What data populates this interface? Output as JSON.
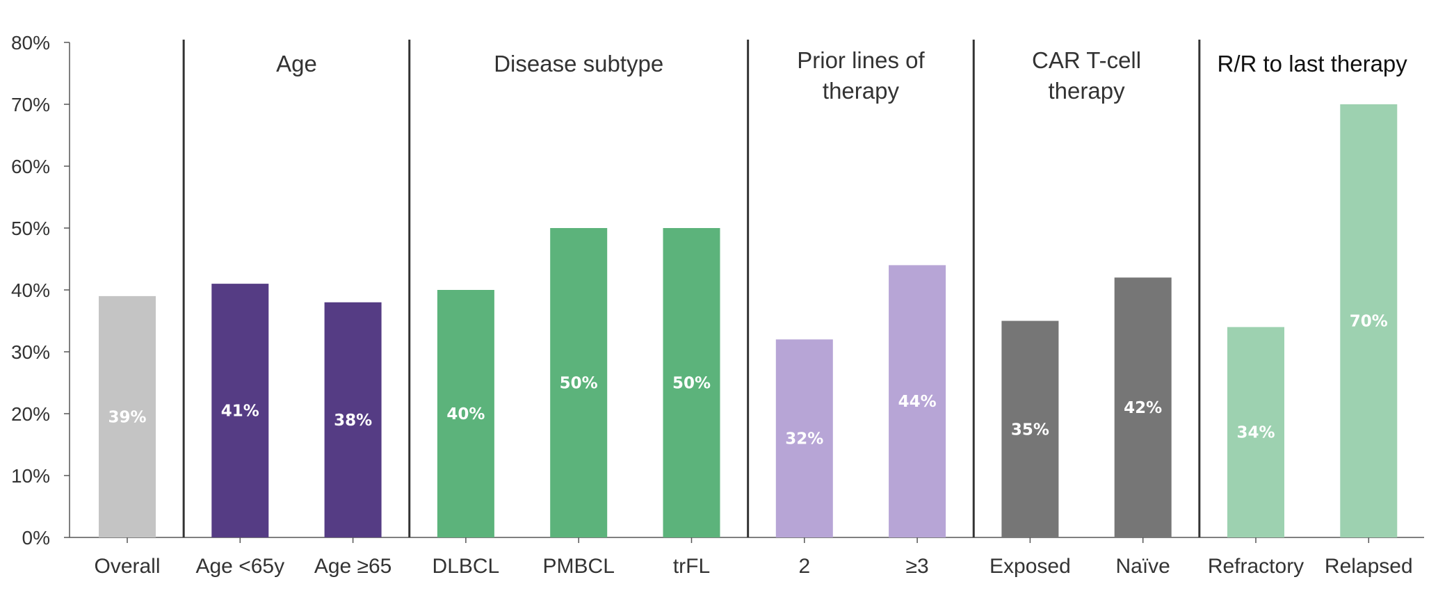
{
  "chart_data": {
    "type": "bar",
    "ylim": [
      0,
      80
    ],
    "yticks": [
      "0%",
      "10%",
      "20%",
      "30%",
      "40%",
      "50%",
      "60%",
      "70%",
      "80%"
    ],
    "grid": false,
    "legend": "none",
    "categories": [
      "Overall",
      "Age <65y",
      "Age ≥65",
      "DLBCL",
      "PMBCL",
      "trFL",
      "2",
      "≥3",
      "Exposed",
      "Naïve",
      "Refractory",
      "Relapsed"
    ],
    "values": [
      39,
      41,
      38,
      40,
      50,
      50,
      32,
      44,
      35,
      42,
      34,
      70
    ],
    "data_labels": [
      "39%",
      "41%",
      "38%",
      "40%",
      "50%",
      "50%",
      "32%",
      "44%",
      "35%",
      "42%",
      "34%",
      "70%"
    ],
    "bar_colors": [
      "#c4c4c4",
      "#553c84",
      "#553c84",
      "#5cb37b",
      "#5cb37b",
      "#5cb37b",
      "#b7a5d6",
      "#b7a5d6",
      "#767676",
      "#767676",
      "#9dd1b0",
      "#9dd1b0"
    ],
    "groups": [
      {
        "lines": [
          "Age"
        ],
        "start": 1,
        "end": 2
      },
      {
        "lines": [
          "Disease subtype"
        ],
        "start": 3,
        "end": 5
      },
      {
        "lines": [
          "Prior lines of",
          "therapy"
        ],
        "start": 6,
        "end": 7
      },
      {
        "lines": [
          "CAR T-cell",
          "therapy"
        ],
        "start": 8,
        "end": 9
      },
      {
        "lines": [
          "R/R to last therapy"
        ],
        "start": 10,
        "end": 11,
        "emphasis": true
      }
    ]
  }
}
